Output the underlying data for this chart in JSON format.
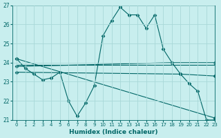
{
  "xlabel": "Humidex (Indice chaleur)",
  "background_color": "#c8eeee",
  "grid_color": "#a8d8d8",
  "line_color": "#006666",
  "xlim": [
    -0.5,
    23
  ],
  "ylim": [
    21,
    27
  ],
  "yticks": [
    21,
    22,
    23,
    24,
    25,
    26,
    27
  ],
  "xticks": [
    0,
    1,
    2,
    3,
    4,
    5,
    6,
    7,
    8,
    9,
    10,
    11,
    12,
    13,
    14,
    15,
    16,
    17,
    18,
    19,
    20,
    21,
    22,
    23
  ],
  "series1_x": [
    0,
    1,
    2,
    3,
    4,
    5,
    6,
    7,
    8,
    9,
    10,
    11,
    12,
    13,
    14,
    15,
    16,
    17,
    18,
    19,
    20,
    21,
    22,
    23
  ],
  "series1_y": [
    24.2,
    23.7,
    23.4,
    23.1,
    23.2,
    23.5,
    22.0,
    21.2,
    21.9,
    22.8,
    25.4,
    26.2,
    26.9,
    26.5,
    26.5,
    25.8,
    26.5,
    24.7,
    24.0,
    23.4,
    22.9,
    22.5,
    21.0,
    21.0
  ],
  "series2_x": [
    0,
    18,
    23
  ],
  "series2_y": [
    23.8,
    24.0,
    24.0
  ],
  "series3_x": [
    0,
    19,
    23
  ],
  "series3_y": [
    23.5,
    23.4,
    23.3
  ],
  "series4_x": [
    0,
    4,
    23
  ],
  "series4_y": [
    23.9,
    23.9,
    23.9
  ],
  "series5_x": [
    0,
    23
  ],
  "series5_y": [
    24.2,
    21.1
  ]
}
